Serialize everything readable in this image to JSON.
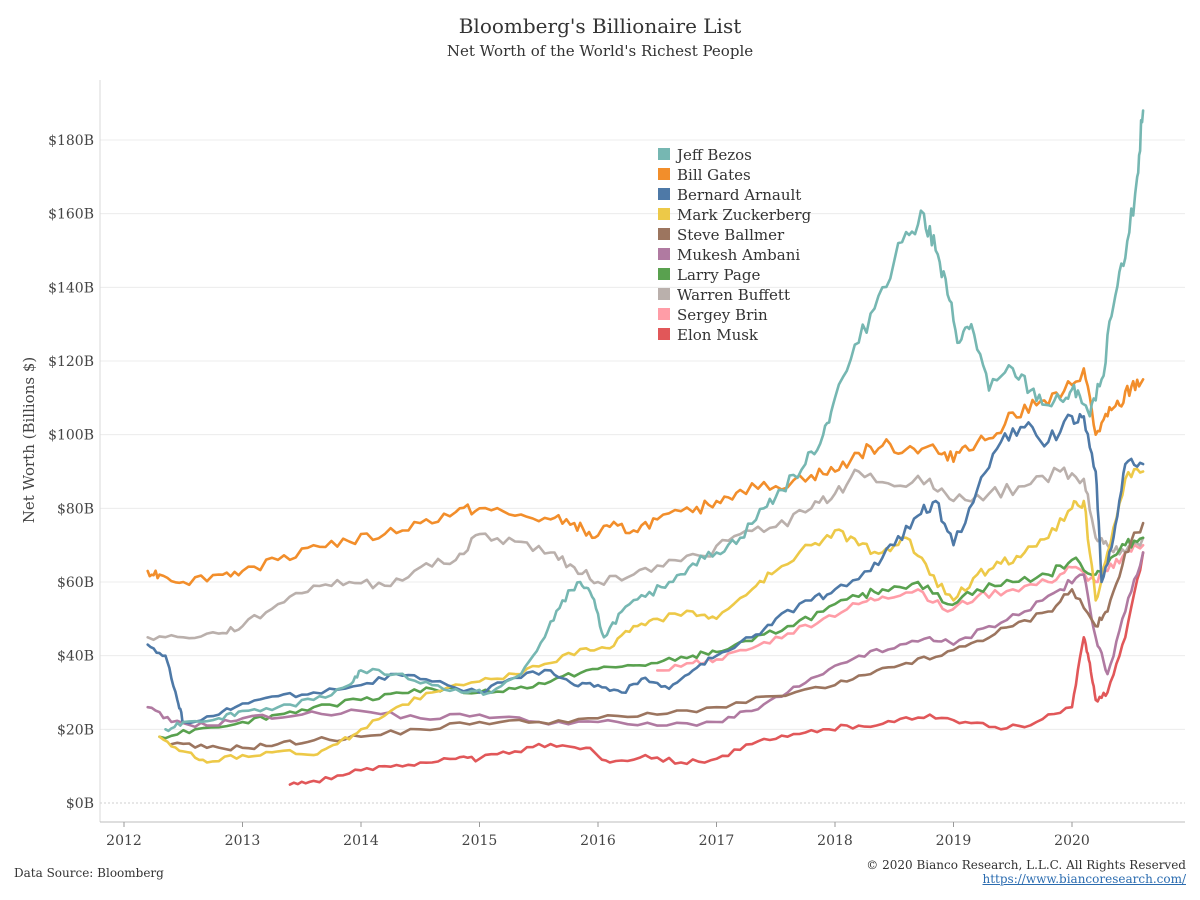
{
  "title": "Bloomberg's Billionaire List",
  "subtitle": "Net Worth of the World's Richest People",
  "source": "Data Source: Bloomberg",
  "copyright": "© 2020 Bianco Research, L.L.C. All Rights Reserved",
  "url": "https://www.biancoresearch.com/",
  "chart_data": {
    "type": "line",
    "ylabel": "Net Worth (Billions $)",
    "xlabel": "",
    "xlim": [
      2012.0,
      2020.7
    ],
    "ylim": [
      0,
      190
    ],
    "x_ticks": [
      "2012",
      "2013",
      "2014",
      "2015",
      "2016",
      "2017",
      "2018",
      "2019",
      "2020"
    ],
    "x_tick_values": [
      2012,
      2013,
      2014,
      2015,
      2016,
      2017,
      2018,
      2019,
      2020
    ],
    "y_ticks": [
      "$0B",
      "$20B",
      "$40B",
      "$60B",
      "$80B",
      "$100B",
      "$120B",
      "$140B",
      "$160B",
      "$180B"
    ],
    "y_tick_values": [
      0,
      20,
      40,
      60,
      80,
      100,
      120,
      140,
      160,
      180
    ],
    "grid": "horizontal",
    "legend_position": "top-center",
    "series": [
      {
        "name": "Jeff Bezos",
        "color": "#76b7b2",
        "x": [
          2012.35,
          2012.5,
          2012.8,
          2013.0,
          2013.3,
          2013.6,
          2013.9,
          2014.0,
          2014.3,
          2014.6,
          2014.9,
          2015.1,
          2015.35,
          2015.55,
          2015.7,
          2015.85,
          2015.95,
          2016.05,
          2016.2,
          2016.4,
          2016.6,
          2016.8,
          2017.0,
          2017.2,
          2017.4,
          2017.55,
          2017.75,
          2017.9,
          2018.0,
          2018.2,
          2018.4,
          2018.6,
          2018.75,
          2018.85,
          2018.95,
          2019.05,
          2019.15,
          2019.3,
          2019.5,
          2019.65,
          2019.8,
          2019.95,
          2020.05,
          2020.15,
          2020.25,
          2020.35,
          2020.45,
          2020.55,
          2020.6
        ],
        "y": [
          20,
          22,
          23,
          25,
          26,
          28,
          32,
          36,
          35,
          32,
          30,
          30,
          35,
          45,
          55,
          60,
          56,
          45,
          52,
          56,
          60,
          65,
          68,
          72,
          80,
          85,
          92,
          100,
          110,
          125,
          140,
          155,
          160,
          150,
          138,
          125,
          130,
          112,
          118,
          112,
          108,
          110,
          112,
          105,
          115,
          135,
          148,
          170,
          188
        ]
      },
      {
        "name": "Bill Gates",
        "color": "#f28e2b",
        "x": [
          2012.2,
          2012.3,
          2012.5,
          2012.8,
          2013.0,
          2013.3,
          2013.6,
          2013.9,
          2014.2,
          2014.5,
          2014.8,
          2015.0,
          2015.3,
          2015.6,
          2015.8,
          2015.95,
          2016.1,
          2016.3,
          2016.5,
          2016.8,
          2017.0,
          2017.2,
          2017.5,
          2017.8,
          2018.0,
          2018.2,
          2018.4,
          2018.6,
          2018.8,
          2018.95,
          2019.1,
          2019.3,
          2019.5,
          2019.7,
          2019.9,
          2020.1,
          2020.2,
          2020.3,
          2020.4,
          2020.5,
          2020.6
        ],
        "y": [
          63,
          62,
          60,
          62,
          63,
          66,
          70,
          71,
          73,
          76,
          79,
          80,
          78,
          77,
          76,
          72,
          75,
          74,
          77,
          79,
          82,
          85,
          86,
          89,
          90,
          95,
          97,
          96,
          97,
          93,
          97,
          99,
          106,
          108,
          110,
          118,
          100,
          105,
          108,
          113,
          115
        ]
      },
      {
        "name": "Bernard Arnault",
        "color": "#4e79a7",
        "x": [
          2012.2,
          2012.35,
          2012.45,
          2012.5,
          2012.8,
          2013.0,
          2013.3,
          2013.6,
          2014.0,
          2014.3,
          2014.6,
          2015.0,
          2015.3,
          2015.6,
          2015.8,
          2016.0,
          2016.2,
          2016.4,
          2016.6,
          2016.8,
          2017.0,
          2017.3,
          2017.5,
          2017.8,
          2018.0,
          2018.3,
          2018.5,
          2018.7,
          2018.85,
          2019.0,
          2019.2,
          2019.4,
          2019.6,
          2019.8,
          2020.0,
          2020.1,
          2020.2,
          2020.25,
          2020.35,
          2020.45,
          2020.6
        ],
        "y": [
          43,
          40,
          28,
          22,
          24,
          27,
          29,
          30,
          32,
          35,
          33,
          30,
          34,
          36,
          32,
          32,
          30,
          34,
          31,
          36,
          40,
          45,
          50,
          55,
          58,
          63,
          70,
          78,
          82,
          70,
          85,
          98,
          102,
          98,
          105,
          105,
          90,
          60,
          72,
          92,
          92
        ]
      },
      {
        "name": "Mark Zuckerberg",
        "color": "#edc948",
        "x": [
          2012.3,
          2012.5,
          2012.7,
          2013.0,
          2013.3,
          2013.6,
          2013.8,
          2014.0,
          2014.3,
          2014.6,
          2015.0,
          2015.3,
          2015.6,
          2015.9,
          2016.1,
          2016.3,
          2016.5,
          2016.8,
          2017.0,
          2017.3,
          2017.5,
          2017.8,
          2018.0,
          2018.2,
          2018.4,
          2018.6,
          2018.8,
          2019.0,
          2019.2,
          2019.4,
          2019.6,
          2019.8,
          2020.0,
          2020.1,
          2020.2,
          2020.3,
          2020.45,
          2020.6
        ],
        "y": [
          18,
          14,
          11,
          13,
          14,
          13,
          16,
          20,
          26,
          30,
          33,
          35,
          38,
          42,
          42,
          48,
          50,
          52,
          50,
          58,
          63,
          70,
          74,
          70,
          68,
          72,
          62,
          55,
          62,
          65,
          68,
          72,
          80,
          82,
          55,
          68,
          88,
          90
        ]
      },
      {
        "name": "Steve Ballmer",
        "color": "#9c755f",
        "x": [
          2012.4,
          2012.7,
          2013.0,
          2013.3,
          2013.6,
          2014.0,
          2014.5,
          2015.0,
          2015.5,
          2016.0,
          2016.5,
          2017.0,
          2017.5,
          2018.0,
          2018.3,
          2018.6,
          2018.9,
          2019.2,
          2019.5,
          2019.8,
          2020.0,
          2020.2,
          2020.3,
          2020.45,
          2020.6
        ],
        "y": [
          16,
          15,
          15,
          16,
          17,
          18,
          20,
          22,
          22,
          23,
          24,
          26,
          29,
          32,
          35,
          38,
          40,
          44,
          48,
          52,
          58,
          48,
          52,
          68,
          76
        ]
      },
      {
        "name": "Mukesh Ambani",
        "color": "#b07aa1",
        "x": [
          2012.2,
          2012.4,
          2012.7,
          2013.0,
          2013.5,
          2014.0,
          2014.5,
          2015.0,
          2015.5,
          2016.0,
          2016.5,
          2017.0,
          2017.3,
          2017.6,
          2017.9,
          2018.2,
          2018.5,
          2018.8,
          2019.0,
          2019.3,
          2019.6,
          2019.9,
          2020.1,
          2020.2,
          2020.3,
          2020.45,
          2020.6
        ],
        "y": [
          26,
          22,
          21,
          23,
          24,
          25,
          23,
          24,
          22,
          22,
          21,
          22,
          25,
          30,
          35,
          40,
          42,
          45,
          43,
          48,
          52,
          58,
          62,
          45,
          35,
          52,
          68
        ]
      },
      {
        "name": "Larry Page",
        "color": "#59a14f",
        "x": [
          2012.3,
          2012.6,
          2013.0,
          2013.3,
          2013.6,
          2014.0,
          2014.3,
          2014.6,
          2015.0,
          2015.3,
          2015.6,
          2015.9,
          2016.2,
          2016.5,
          2016.8,
          2017.0,
          2017.3,
          2017.6,
          2017.9,
          2018.2,
          2018.4,
          2018.7,
          2018.95,
          2019.2,
          2019.5,
          2019.8,
          2020.0,
          2020.2,
          2020.3,
          2020.45,
          2020.6
        ],
        "y": [
          18,
          20,
          22,
          24,
          26,
          28,
          30,
          31,
          30,
          31,
          33,
          36,
          37,
          38,
          40,
          41,
          44,
          48,
          52,
          56,
          58,
          60,
          54,
          58,
          60,
          62,
          66,
          62,
          65,
          70,
          72
        ]
      },
      {
        "name": "Warren Buffett",
        "color": "#bab0ac",
        "x": [
          2012.2,
          2012.5,
          2012.8,
          2013.0,
          2013.3,
          2013.6,
          2013.9,
          2014.2,
          2014.5,
          2014.8,
          2015.0,
          2015.3,
          2015.6,
          2015.8,
          2016.0,
          2016.3,
          2016.6,
          2016.9,
          2017.2,
          2017.5,
          2017.8,
          2018.0,
          2018.2,
          2018.5,
          2018.8,
          2019.0,
          2019.3,
          2019.6,
          2019.9,
          2020.1,
          2020.2,
          2020.3,
          2020.45,
          2020.6
        ],
        "y": [
          45,
          45,
          46,
          48,
          54,
          59,
          60,
          59,
          64,
          66,
          73,
          71,
          68,
          64,
          60,
          62,
          66,
          67,
          73,
          75,
          80,
          84,
          90,
          86,
          88,
          82,
          84,
          86,
          90,
          88,
          72,
          70,
          68,
          72
        ]
      },
      {
        "name": "Sergey Brin",
        "color": "#ff9da7",
        "x": [
          2016.5,
          2016.8,
          2017.0,
          2017.3,
          2017.6,
          2017.9,
          2018.2,
          2018.4,
          2018.7,
          2018.95,
          2019.2,
          2019.5,
          2019.8,
          2020.0,
          2020.2,
          2020.3,
          2020.45,
          2020.6
        ],
        "y": [
          36,
          38,
          39,
          42,
          46,
          50,
          54,
          56,
          58,
          52,
          56,
          58,
          60,
          64,
          60,
          63,
          68,
          70
        ]
      },
      {
        "name": "Elon Musk",
        "color": "#e15759",
        "x": [
          2013.4,
          2013.6,
          2013.9,
          2014.2,
          2014.5,
          2014.8,
          2015.0,
          2015.3,
          2015.6,
          2015.9,
          2016.1,
          2016.4,
          2016.7,
          2017.0,
          2017.3,
          2017.6,
          2017.9,
          2018.2,
          2018.5,
          2018.8,
          2019.1,
          2019.4,
          2019.7,
          2020.0,
          2020.1,
          2020.15,
          2020.2,
          2020.3,
          2020.45,
          2020.6
        ],
        "y": [
          5,
          6,
          8,
          10,
          11,
          12,
          12,
          14,
          16,
          15,
          11,
          13,
          11,
          12,
          16,
          18,
          20,
          21,
          22,
          24,
          22,
          20,
          22,
          26,
          45,
          38,
          28,
          30,
          45,
          68
        ]
      }
    ]
  }
}
